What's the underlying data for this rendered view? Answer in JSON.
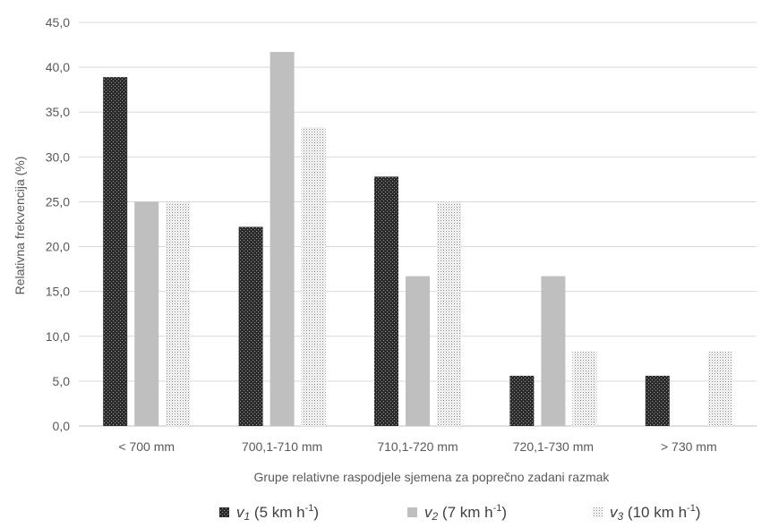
{
  "chart_data": {
    "type": "bar",
    "categories": [
      "< 700 mm",
      "700,1-710 mm",
      "710,1-720 mm",
      "720,1-730 mm",
      "> 730 mm"
    ],
    "series": [
      {
        "name": "v1 (5 km h-1)",
        "symbol": "v",
        "sub": "1",
        "unit_main": " (5 km h",
        "unit_sup": "-1",
        "unit_close": ")",
        "values": [
          38.9,
          22.2,
          27.8,
          5.6,
          5.6
        ],
        "pattern": "crosshatch-dark",
        "color": "#3f3f3f"
      },
      {
        "name": "v2 (7 km h-1)",
        "symbol": "v",
        "sub": "2",
        "unit_main": " (7 km h",
        "unit_sup": "-1",
        "unit_close": ")",
        "values": [
          25.0,
          41.7,
          16.7,
          16.7,
          0.0
        ],
        "pattern": "solid",
        "color": "#bfbfbf"
      },
      {
        "name": "v3 (10 km h-1)",
        "symbol": "v",
        "sub": "3",
        "unit_main": " (10 km h",
        "unit_sup": "-1",
        "unit_close": ")",
        "values": [
          25.0,
          33.3,
          25.0,
          8.3,
          8.3
        ],
        "pattern": "dots",
        "color": "#9a9a9a"
      }
    ],
    "ylim": [
      0,
      45
    ],
    "ytick_step": 5,
    "ytick_labels": [
      "0,0",
      "5,0",
      "10,0",
      "15,0",
      "20,0",
      "25,0",
      "30,0",
      "35,0",
      "40,0",
      "45,0"
    ],
    "xlabel": "Grupe relativne raspodjele sjemena za poprečno zadani razmak",
    "ylabel": "Relativna frekvencija (%)",
    "grid": true,
    "legend_position": "bottom",
    "colors": {
      "gridline": "#d9d9d9",
      "axis": "#bfbfbf",
      "text": "#595959"
    }
  }
}
